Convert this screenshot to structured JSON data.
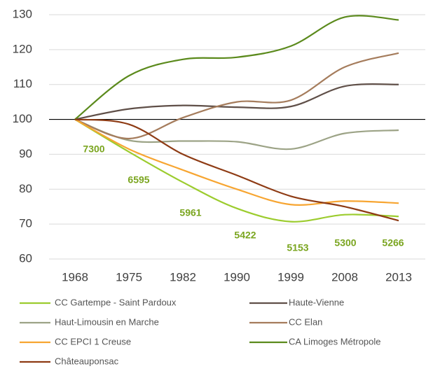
{
  "chart_data": {
    "type": "line",
    "categories": [
      "1968",
      "1975",
      "1982",
      "1990",
      "1999",
      "2008",
      "2013"
    ],
    "series": [
      {
        "name": "CC Gartempe - Saint Pardoux",
        "color": "#9ccc2e",
        "values": [
          100,
          90.7,
          82,
          74.5,
          70.7,
          72.7,
          72.2
        ]
      },
      {
        "name": "Haute-Vienne",
        "color": "#5f4f48",
        "values": [
          100,
          103,
          104,
          103.5,
          103.7,
          109.5,
          110
        ]
      },
      {
        "name": "Haut-Limousin en Marche",
        "color": "#9ca386",
        "values": [
          100,
          94,
          93.8,
          93.6,
          91.5,
          96,
          96.9
        ]
      },
      {
        "name": "CC Elan",
        "color": "#a57c5c",
        "values": [
          100,
          94.5,
          100.5,
          105,
          105.5,
          115,
          119
        ]
      },
      {
        "name": "CC EPCI 1 Creuse",
        "color": "#f7a531",
        "values": [
          100,
          91.5,
          85.5,
          80,
          75.6,
          76.6,
          76
        ]
      },
      {
        "name": "CA Limoges Métropole",
        "color": "#5b8a1c",
        "values": [
          100,
          112.5,
          117.2,
          117.8,
          121,
          129.3,
          128.5
        ]
      },
      {
        "name": "Châteauponsac",
        "color": "#8e3b14",
        "values": [
          100,
          98.6,
          90,
          84,
          78,
          75,
          71
        ]
      }
    ],
    "annotations": [
      "7300",
      "6595",
      "5961",
      "5422",
      "5153",
      "5300",
      "5266"
    ],
    "annotation_color": "#7aa51f",
    "reference_line": 100,
    "ylim": [
      60,
      130
    ],
    "yticks": [
      60,
      70,
      80,
      90,
      100,
      110,
      120,
      130
    ],
    "grid": true
  }
}
